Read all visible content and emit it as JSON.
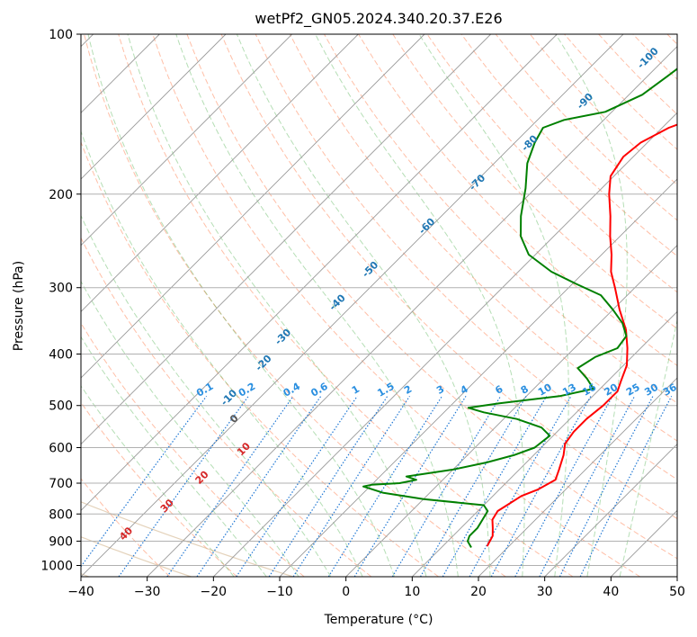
{
  "chart_data": {
    "type": "line",
    "title": "wetPf2_GN05.2024.340.20.37.E26",
    "xlabel": "Temperature (°C)",
    "ylabel": "Pressure (hPa)",
    "xlim": [
      -40,
      50
    ],
    "ylim": [
      1050,
      100
    ],
    "y_scale": "log",
    "grid": true,
    "xticks": [
      -40,
      -30,
      -20,
      -10,
      0,
      10,
      20,
      30,
      40,
      50
    ],
    "yticks": [
      100,
      200,
      300,
      400,
      500,
      600,
      700,
      800,
      900,
      1000
    ],
    "series": [
      {
        "role": "temperature",
        "color": "#ff0000",
        "points": [
          {
            "p": 920,
            "t": 16.7
          },
          {
            "p": 880,
            "t": 16.0
          },
          {
            "p": 850,
            "t": 14.8
          },
          {
            "p": 820,
            "t": 13.5
          },
          {
            "p": 790,
            "t": 13.0
          },
          {
            "p": 770,
            "t": 13.5
          },
          {
            "p": 740,
            "t": 14.3
          },
          {
            "p": 720,
            "t": 15.8
          },
          {
            "p": 690,
            "t": 17.0
          },
          {
            "p": 660,
            "t": 16.0
          },
          {
            "p": 620,
            "t": 14.5
          },
          {
            "p": 590,
            "t": 13.0
          },
          {
            "p": 560,
            "t": 12.5
          },
          {
            "p": 530,
            "t": 12.5
          },
          {
            "p": 500,
            "t": 13.0
          },
          {
            "p": 470,
            "t": 13.0
          },
          {
            "p": 450,
            "t": 12.0
          },
          {
            "p": 420,
            "t": 10.5
          },
          {
            "p": 390,
            "t": 8.0
          },
          {
            "p": 360,
            "t": 5.0
          },
          {
            "p": 330,
            "t": 1.0
          },
          {
            "p": 300,
            "t": -3.0
          },
          {
            "p": 280,
            "t": -6.0
          },
          {
            "p": 260,
            "t": -8.5
          },
          {
            "p": 240,
            "t": -11.5
          },
          {
            "p": 220,
            "t": -14.5
          },
          {
            "p": 200,
            "t": -18.0
          },
          {
            "p": 185,
            "t": -20.5
          },
          {
            "p": 170,
            "t": -21.5
          },
          {
            "p": 160,
            "t": -21.0
          },
          {
            "p": 150,
            "t": -19.0
          },
          {
            "p": 145,
            "t": -17.0
          },
          {
            "p": 135,
            "t": -16.0
          },
          {
            "p": 125,
            "t": -16.0
          },
          {
            "p": 115,
            "t": -16.5
          },
          {
            "p": 108,
            "t": -16.5
          },
          {
            "p": 100,
            "t": -16.7
          }
        ]
      },
      {
        "role": "dewpoint",
        "color": "#008000",
        "points": [
          {
            "p": 925,
            "t": 14.5
          },
          {
            "p": 900,
            "t": 13.0
          },
          {
            "p": 880,
            "t": 12.5
          },
          {
            "p": 850,
            "t": 12.5
          },
          {
            "p": 820,
            "t": 12.0
          },
          {
            "p": 790,
            "t": 11.5
          },
          {
            "p": 770,
            "t": 10.0
          },
          {
            "p": 750,
            "t": 0.0
          },
          {
            "p": 730,
            "t": -7.0
          },
          {
            "p": 710,
            "t": -11.0
          },
          {
            "p": 705,
            "t": -10.0
          },
          {
            "p": 700,
            "t": -6.0
          },
          {
            "p": 690,
            "t": -4.0
          },
          {
            "p": 680,
            "t": -6.0
          },
          {
            "p": 660,
            "t": 0.0
          },
          {
            "p": 640,
            "t": 4.0
          },
          {
            "p": 620,
            "t": 7.0
          },
          {
            "p": 600,
            "t": 9.0
          },
          {
            "p": 570,
            "t": 9.5
          },
          {
            "p": 550,
            "t": 7.0
          },
          {
            "p": 530,
            "t": 2.0
          },
          {
            "p": 515,
            "t": -4.0
          },
          {
            "p": 505,
            "t": -7.0
          },
          {
            "p": 495,
            "t": -3.0
          },
          {
            "p": 480,
            "t": 5.0
          },
          {
            "p": 465,
            "t": 9.0
          },
          {
            "p": 445,
            "t": 6.5
          },
          {
            "p": 425,
            "t": 3.5
          },
          {
            "p": 405,
            "t": 4.5
          },
          {
            "p": 390,
            "t": 6.5
          },
          {
            "p": 370,
            "t": 6.0
          },
          {
            "p": 350,
            "t": 3.5
          },
          {
            "p": 330,
            "t": 0.0
          },
          {
            "p": 310,
            "t": -4.0
          },
          {
            "p": 295,
            "t": -9.5
          },
          {
            "p": 280,
            "t": -15.0
          },
          {
            "p": 260,
            "t": -21.0
          },
          {
            "p": 240,
            "t": -25.0
          },
          {
            "p": 220,
            "t": -28.0
          },
          {
            "p": 195,
            "t": -31.5
          },
          {
            "p": 175,
            "t": -35.0
          },
          {
            "p": 160,
            "t": -37.0
          },
          {
            "p": 150,
            "t": -38.0
          },
          {
            "p": 145,
            "t": -36.0
          },
          {
            "p": 140,
            "t": -31.0
          },
          {
            "p": 130,
            "t": -28.0
          },
          {
            "p": 120,
            "t": -27.0
          },
          {
            "p": 115,
            "t": -26.5
          },
          {
            "p": 108,
            "t": -23.0
          },
          {
            "p": 100,
            "t": -19.0
          }
        ]
      }
    ],
    "isotherms_spacing": 10,
    "isotherm_color": "#999999",
    "dry_adiabat_color": "#ff7f50",
    "moist_adiabat_color": "#2ca02c",
    "mixing_ratio_color": "#1f77d4",
    "reference_color": "#d2b48c",
    "mixing_ratio_labels": [
      "0.1",
      "0.2",
      "0.4",
      "0.6",
      "1",
      "1.5",
      "2",
      "3",
      "4",
      "6",
      "8",
      "10",
      "13",
      "16",
      "20",
      "25",
      "30",
      "36"
    ],
    "mixing_ratio_values": [
      0.1,
      0.2,
      0.4,
      0.6,
      1,
      1.5,
      2,
      3,
      4,
      6,
      8,
      10,
      13,
      16,
      20,
      25,
      30,
      36
    ],
    "blue_labels": [
      {
        "text": "-100",
        "p": 112,
        "t": -32
      },
      {
        "text": "-90",
        "p": 135,
        "t": -35
      },
      {
        "text": "-80",
        "p": 162,
        "t": -37
      },
      {
        "text": "-70",
        "p": 192,
        "t": -39
      },
      {
        "text": "-60",
        "p": 232,
        "t": -40
      },
      {
        "text": "-50",
        "p": 280,
        "t": -42
      },
      {
        "text": "-40",
        "p": 323,
        "t": -42
      },
      {
        "text": "-30",
        "p": 375,
        "t": -45
      },
      {
        "text": "-20",
        "p": 420,
        "t": -44
      },
      {
        "text": "-10",
        "p": 488,
        "t": -44
      }
    ],
    "black_labels": [
      {
        "text": "0",
        "p": 535,
        "t": -40
      }
    ],
    "red_labels": [
      {
        "text": "10",
        "p": 610,
        "t": -34
      },
      {
        "text": "20",
        "p": 690,
        "t": -36
      },
      {
        "text": "30",
        "p": 780,
        "t": -37
      },
      {
        "text": "40",
        "p": 880,
        "t": -39
      }
    ]
  }
}
